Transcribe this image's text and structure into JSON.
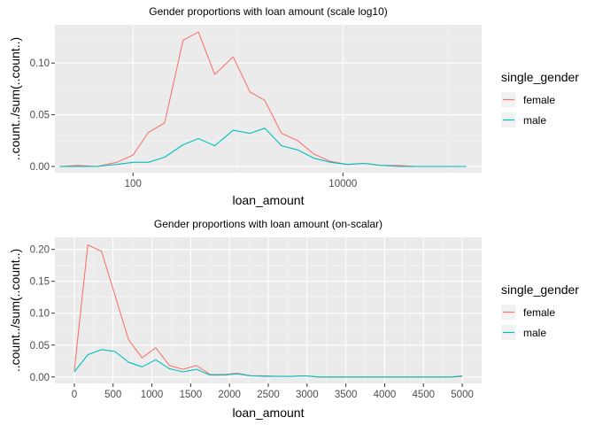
{
  "colors": {
    "panel_bg": "#EBEBEB",
    "grid_major": "#FFFFFF",
    "female": "#F8766D",
    "male": "#00BFC4",
    "text_dark": "#000000",
    "text_tick": "#4D4D4D"
  },
  "chart_data": [
    {
      "type": "line",
      "title": "Gender proportions with loan amount (scale log10)",
      "xlabel": "loan_amount",
      "ylabel": "..count../sum(..count..)",
      "x_scale": "log10",
      "xlim": [
        18,
        210000
      ],
      "ylim": [
        -0.006,
        0.137
      ],
      "x_ticks": [
        100,
        10000
      ],
      "x_tick_labels": [
        "100",
        "10000"
      ],
      "y_ticks": [
        0.0,
        0.05,
        0.1
      ],
      "y_tick_labels": [
        "0.00",
        "0.05",
        "0.10"
      ],
      "grid": true,
      "legend": {
        "title": "single_gender",
        "position": "right",
        "entries": [
          "female",
          "male"
        ]
      },
      "series": [
        {
          "name": "female",
          "x": [
            20,
            30,
            45,
            70,
            100,
            140,
            200,
            300,
            420,
            600,
            900,
            1300,
            1800,
            2600,
            3700,
            5300,
            7600,
            11000,
            16000,
            23000,
            34000,
            50000,
            72000,
            100000,
            150000
          ],
          "y": [
            0.0,
            0.001,
            0.0,
            0.004,
            0.011,
            0.033,
            0.042,
            0.122,
            0.13,
            0.089,
            0.106,
            0.072,
            0.064,
            0.032,
            0.025,
            0.012,
            0.005,
            0.002,
            0.003,
            0.001,
            0.001,
            0.0,
            0.0,
            0.0,
            0.0
          ]
        },
        {
          "name": "male",
          "x": [
            20,
            30,
            45,
            70,
            100,
            140,
            200,
            300,
            420,
            600,
            900,
            1300,
            1800,
            2600,
            3700,
            5300,
            7600,
            11000,
            16000,
            23000,
            34000,
            50000,
            72000,
            100000,
            150000
          ],
          "y": [
            0.0,
            0.0,
            0.0,
            0.002,
            0.004,
            0.004,
            0.009,
            0.021,
            0.027,
            0.02,
            0.035,
            0.032,
            0.037,
            0.02,
            0.016,
            0.008,
            0.004,
            0.002,
            0.003,
            0.001,
            0.0,
            0.0,
            0.0,
            0.0,
            0.0
          ]
        }
      ]
    },
    {
      "type": "line",
      "title": "Gender proportions with loan amount (on-scalar)",
      "xlabel": "loan_amount",
      "ylabel": "..count../sum(..count..)",
      "x_scale": "linear",
      "xlim": [
        -250,
        5250
      ],
      "ylim": [
        -0.01,
        0.219
      ],
      "x_ticks": [
        0,
        500,
        1000,
        1500,
        2000,
        2500,
        3000,
        3500,
        4000,
        4500,
        5000
      ],
      "x_tick_labels": [
        "0",
        "500",
        "1000",
        "1500",
        "2000",
        "2500",
        "3000",
        "3500",
        "4000",
        "4500",
        "5000"
      ],
      "y_ticks": [
        0.0,
        0.05,
        0.1,
        0.15,
        0.2
      ],
      "y_tick_labels": [
        "0.00",
        "0.05",
        "0.10",
        "0.15",
        "0.20"
      ],
      "grid": true,
      "legend": {
        "title": "single_gender",
        "position": "right",
        "entries": [
          "female",
          "male"
        ]
      },
      "series": [
        {
          "name": "female",
          "x": [
            0,
            175,
            350,
            525,
            700,
            875,
            1050,
            1225,
            1400,
            1575,
            1750,
            1925,
            2100,
            2275,
            2450,
            2625,
            2800,
            2975,
            3150,
            3500,
            4000,
            4500,
            4850,
            5000
          ],
          "y": [
            0.01,
            0.207,
            0.197,
            0.128,
            0.058,
            0.03,
            0.046,
            0.018,
            0.012,
            0.018,
            0.004,
            0.004,
            0.006,
            0.002,
            0.002,
            0.001,
            0.001,
            0.002,
            0.0,
            0.0,
            0.0,
            0.0,
            0.0,
            0.002
          ]
        },
        {
          "name": "male",
          "x": [
            0,
            175,
            350,
            525,
            700,
            875,
            1050,
            1225,
            1400,
            1575,
            1750,
            1925,
            2100,
            2275,
            2450,
            2625,
            2800,
            2975,
            3150,
            3500,
            4000,
            4500,
            4850,
            5000
          ],
          "y": [
            0.008,
            0.035,
            0.043,
            0.04,
            0.023,
            0.016,
            0.027,
            0.013,
            0.008,
            0.012,
            0.003,
            0.003,
            0.005,
            0.002,
            0.001,
            0.001,
            0.001,
            0.002,
            0.0,
            0.0,
            0.0,
            0.0,
            0.0,
            0.001
          ]
        }
      ]
    }
  ]
}
